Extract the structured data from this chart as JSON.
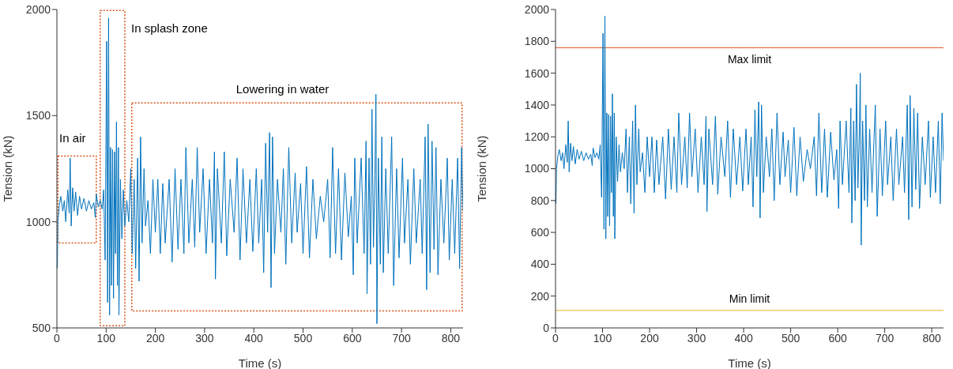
{
  "chart_data": [
    {
      "type": "line",
      "xlabel": "Time (s)",
      "ylabel": "Tension (kN)",
      "xlim": [
        0,
        825
      ],
      "xticks": [
        0,
        100,
        200,
        300,
        400,
        500,
        600,
        700,
        800
      ],
      "ylim": [
        500,
        2000
      ],
      "yticks": [
        500,
        1000,
        1500,
        2000
      ],
      "grid": false,
      "legend": false,
      "marker": "none",
      "line_style": "solid",
      "annotations": [
        "In air",
        "In splash zone",
        "Lowering in water"
      ],
      "series": [
        {
          "color": "#0072bd",
          "x": [
            1,
            2,
            5,
            8,
            12,
            15,
            18,
            22,
            25,
            27,
            29,
            32,
            35,
            38,
            42,
            46,
            50,
            55,
            60,
            65,
            70,
            75,
            78,
            80,
            84,
            88,
            92,
            95,
            98,
            101,
            103,
            105,
            107,
            109,
            111,
            113,
            115,
            117,
            119,
            121,
            123,
            125,
            126,
            129,
            132,
            135,
            138,
            142,
            146,
            150,
            153,
            157,
            160,
            164,
            167,
            170,
            173,
            177,
            180,
            185,
            190,
            195,
            200,
            205,
            210,
            215,
            220,
            228,
            234,
            240,
            246,
            252,
            258,
            262,
            268,
            275,
            280,
            285,
            290,
            297,
            303,
            310,
            316,
            320,
            322,
            326,
            334,
            340,
            345,
            352,
            360,
            366,
            372,
            378,
            385,
            392,
            398,
            405,
            410,
            416,
            420,
            424,
            428,
            432,
            435,
            438,
            442,
            448,
            455,
            460,
            465,
            471,
            477,
            484,
            488,
            495,
            500,
            507,
            513,
            520,
            527,
            535,
            542,
            550,
            555,
            560,
            566,
            572,
            578,
            585,
            592,
            598,
            602,
            605,
            610,
            618,
            624,
            628,
            630,
            634,
            637,
            640,
            643,
            646,
            648,
            650,
            653,
            657,
            660,
            663,
            668,
            673,
            680,
            684,
            690,
            695,
            702,
            706,
            713,
            718,
            725,
            730,
            738,
            742,
            748,
            751,
            754,
            758,
            762,
            766,
            770,
            774,
            780,
            786,
            793,
            797,
            803,
            808,
            814,
            818,
            822,
            825
          ],
          "values": [
            780,
            1000,
            1080,
            1120,
            1050,
            1100,
            1000,
            1150,
            1040,
            1300,
            980,
            1160,
            1050,
            1140,
            1030,
            1120,
            1060,
            1110,
            1050,
            1100,
            1060,
            1090,
            1020,
            1130,
            1070,
            1100,
            1060,
            1150,
            820,
            1850,
            620,
            1960,
            560,
            1350,
            700,
            1340,
            640,
            1330,
            850,
            1470,
            700,
            1350,
            560,
            1200,
            920,
            1150,
            980,
            1100,
            1000,
            1250,
            850,
            1200,
            780,
            1300,
            720,
            1400,
            900,
            1250,
            980,
            1100,
            850,
            1200,
            950,
            1200,
            850,
            1180,
            900,
            1200,
            810,
            1250,
            870,
            1200,
            850,
            1350,
            900,
            1200,
            880,
            1350,
            950,
            1250,
            850,
            1200,
            900,
            1330,
            730,
            1250,
            900,
            1330,
            840,
            1200,
            950,
            1300,
            820,
            1250,
            900,
            1200,
            860,
            1250,
            900,
            1200,
            760,
            1370,
            950,
            1420,
            690,
            1400,
            850,
            1200,
            950,
            1250,
            800,
            1350,
            900,
            1230,
            950,
            1180,
            850,
            1260,
            830,
            1200,
            920,
            1120,
            1000,
            1200,
            830,
            1350,
            850,
            1250,
            820,
            1230,
            930,
            1120,
            750,
            1300,
            900,
            1300,
            850,
            1380,
            660,
            1300,
            800,
            1530,
            880,
            1220,
            1600,
            520,
            1300,
            800,
            1400,
            760,
            1250,
            850,
            1400,
            700,
            1250,
            830,
            1300,
            900,
            1200,
            800,
            1250,
            900,
            1200,
            850,
            1400,
            680,
            1460,
            760,
            1380,
            870,
            1350,
            750,
            1200,
            900,
            1300,
            820,
            1200,
            850,
            1300,
            780,
            1350,
            1050
          ]
        }
      ]
    },
    {
      "type": "line",
      "xlabel": "Time (s)",
      "ylabel": "Tension (kN)",
      "xlim": [
        0,
        825
      ],
      "xticks": [
        0,
        100,
        200,
        300,
        400,
        500,
        600,
        700,
        800
      ],
      "ylim": [
        0,
        2000
      ],
      "yticks": [
        0,
        200,
        400,
        600,
        800,
        1000,
        1200,
        1400,
        1600,
        1800,
        2000
      ],
      "grid": false,
      "legend": false,
      "marker": "none",
      "line_style": "solid",
      "ref_lines": [
        {
          "axis": "y",
          "value": 1760,
          "label": "Max limit",
          "color": "#d95319"
        },
        {
          "axis": "y",
          "value": 110,
          "label": "Min limit",
          "color": "#edb120"
        }
      ],
      "series": [
        {
          "color": "#0072bd",
          "x": [
            1,
            2,
            5,
            8,
            12,
            15,
            18,
            22,
            25,
            27,
            29,
            32,
            35,
            38,
            42,
            46,
            50,
            55,
            60,
            65,
            70,
            75,
            78,
            80,
            84,
            88,
            92,
            95,
            98,
            101,
            103,
            105,
            107,
            109,
            111,
            113,
            115,
            117,
            119,
            121,
            123,
            125,
            126,
            129,
            132,
            135,
            138,
            142,
            146,
            150,
            153,
            157,
            160,
            164,
            167,
            170,
            173,
            177,
            180,
            185,
            190,
            195,
            200,
            205,
            210,
            215,
            220,
            228,
            234,
            240,
            246,
            252,
            258,
            262,
            268,
            275,
            280,
            285,
            290,
            297,
            303,
            310,
            316,
            320,
            322,
            326,
            334,
            340,
            345,
            352,
            360,
            366,
            372,
            378,
            385,
            392,
            398,
            405,
            410,
            416,
            420,
            424,
            428,
            432,
            435,
            438,
            442,
            448,
            455,
            460,
            465,
            471,
            477,
            484,
            488,
            495,
            500,
            507,
            513,
            520,
            527,
            535,
            542,
            550,
            555,
            560,
            566,
            572,
            578,
            585,
            592,
            598,
            602,
            605,
            610,
            618,
            624,
            628,
            630,
            634,
            637,
            640,
            643,
            646,
            648,
            650,
            653,
            657,
            660,
            663,
            668,
            673,
            680,
            684,
            690,
            695,
            702,
            706,
            713,
            718,
            725,
            730,
            738,
            742,
            748,
            751,
            754,
            758,
            762,
            766,
            770,
            774,
            780,
            786,
            793,
            797,
            803,
            808,
            814,
            818,
            822,
            825
          ],
          "values": [
            780,
            1000,
            1080,
            1120,
            1050,
            1100,
            1000,
            1150,
            1040,
            1300,
            980,
            1160,
            1050,
            1140,
            1030,
            1120,
            1060,
            1110,
            1050,
            1100,
            1060,
            1090,
            1020,
            1130,
            1070,
            1100,
            1060,
            1150,
            820,
            1850,
            620,
            1960,
            560,
            1350,
            700,
            1340,
            640,
            1330,
            850,
            1470,
            700,
            1350,
            560,
            1200,
            920,
            1150,
            980,
            1100,
            1000,
            1250,
            850,
            1200,
            780,
            1300,
            720,
            1400,
            900,
            1250,
            980,
            1100,
            850,
            1200,
            950,
            1200,
            850,
            1180,
            900,
            1200,
            810,
            1250,
            870,
            1200,
            850,
            1350,
            900,
            1200,
            880,
            1350,
            950,
            1250,
            850,
            1200,
            900,
            1330,
            730,
            1250,
            900,
            1330,
            840,
            1200,
            950,
            1300,
            820,
            1250,
            900,
            1200,
            860,
            1250,
            900,
            1200,
            760,
            1370,
            950,
            1420,
            690,
            1400,
            850,
            1200,
            950,
            1250,
            800,
            1350,
            900,
            1230,
            950,
            1180,
            850,
            1260,
            830,
            1200,
            920,
            1120,
            1000,
            1200,
            830,
            1350,
            850,
            1250,
            820,
            1230,
            930,
            1120,
            750,
            1300,
            900,
            1300,
            850,
            1380,
            660,
            1300,
            800,
            1530,
            880,
            1220,
            1600,
            520,
            1300,
            800,
            1400,
            760,
            1250,
            850,
            1400,
            700,
            1250,
            830,
            1300,
            900,
            1200,
            800,
            1250,
            900,
            1200,
            850,
            1400,
            680,
            1460,
            760,
            1380,
            870,
            1350,
            750,
            1200,
            900,
            1300,
            820,
            1200,
            850,
            1300,
            780,
            1350,
            1050
          ]
        }
      ]
    }
  ]
}
